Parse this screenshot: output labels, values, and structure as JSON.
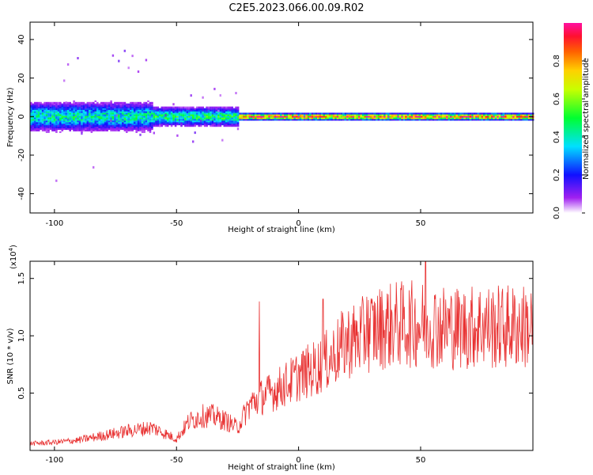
{
  "title": "C2E5.2023.066.00.09.R02",
  "chart_data": [
    {
      "type": "heatmap",
      "xlabel": "Height of straight line (km)",
      "ylabel": "Frequency (Hz)",
      "xlim": [
        -110,
        96
      ],
      "ylim": [
        -50,
        49
      ],
      "x_ticks": [
        -100,
        -50,
        0,
        50
      ],
      "y_ticks": [
        -40,
        -20,
        0,
        20,
        40
      ],
      "colorbar": {
        "label": "Normalized spectral amplitude",
        "range": [
          0.0,
          1.0
        ],
        "ticks": [
          0.0,
          0.2,
          0.4,
          0.6,
          0.8
        ],
        "colormap": "rainbow (white-violet-blue-cyan-green-yellow-orange-red-magenta)"
      },
      "description_points": [
        {
          "x_range": [
            -110,
            -60
          ],
          "freq_spread_hz": 6,
          "amplitude": 0.45
        },
        {
          "x_range": [
            -60,
            -25
          ],
          "freq_spread_hz": 4,
          "amplitude": 0.5
        },
        {
          "x_range": [
            -25,
            96
          ],
          "freq_spread_hz": 1.5,
          "amplitude": 0.95
        }
      ]
    },
    {
      "type": "line",
      "xlabel": "Height of straight line (km)",
      "ylabel": "SNR (10 * v/v)",
      "y_scale_label": "(x10",
      "y_scale_exp": "4",
      "y_scale_close": ")",
      "xlim": [
        -110,
        96
      ],
      "ylim": [
        0,
        16500
      ],
      "x_ticks": [
        -100,
        -50,
        0,
        50
      ],
      "y_ticks": [
        5000,
        10000,
        15000
      ],
      "y_tick_labels": [
        "0.5",
        "1.0",
        "1.5"
      ],
      "series": [
        {
          "color": "#e83030",
          "x": [
            -110,
            -100,
            -90,
            -80,
            -70,
            -60,
            -55,
            -50,
            -45,
            -40,
            -35,
            -30,
            -25,
            -20,
            -15,
            -10,
            -5,
            0,
            5,
            10,
            15,
            20,
            25,
            30,
            35,
            40,
            45,
            50,
            55,
            60,
            65,
            70,
            75,
            80,
            85,
            90,
            96
          ],
          "y": [
            600,
            700,
            900,
            1300,
            1700,
            2000,
            1500,
            1000,
            2500,
            3000,
            3000,
            2600,
            2000,
            4000,
            4700,
            5200,
            5800,
            6500,
            7000,
            7500,
            8500,
            9500,
            9800,
            10500,
            10800,
            11000,
            11000,
            11000,
            11000,
            10800,
            10700,
            10700,
            11000,
            10700,
            10800,
            10800,
            10800
          ]
        }
      ],
      "spikes": [
        {
          "x": -16,
          "y": 13000
        },
        {
          "x": 10,
          "y": 13200
        },
        {
          "x": 28,
          "y": 13400
        },
        {
          "x": 52,
          "y": 16500
        },
        {
          "x": 42,
          "y": 14000
        }
      ]
    }
  ]
}
